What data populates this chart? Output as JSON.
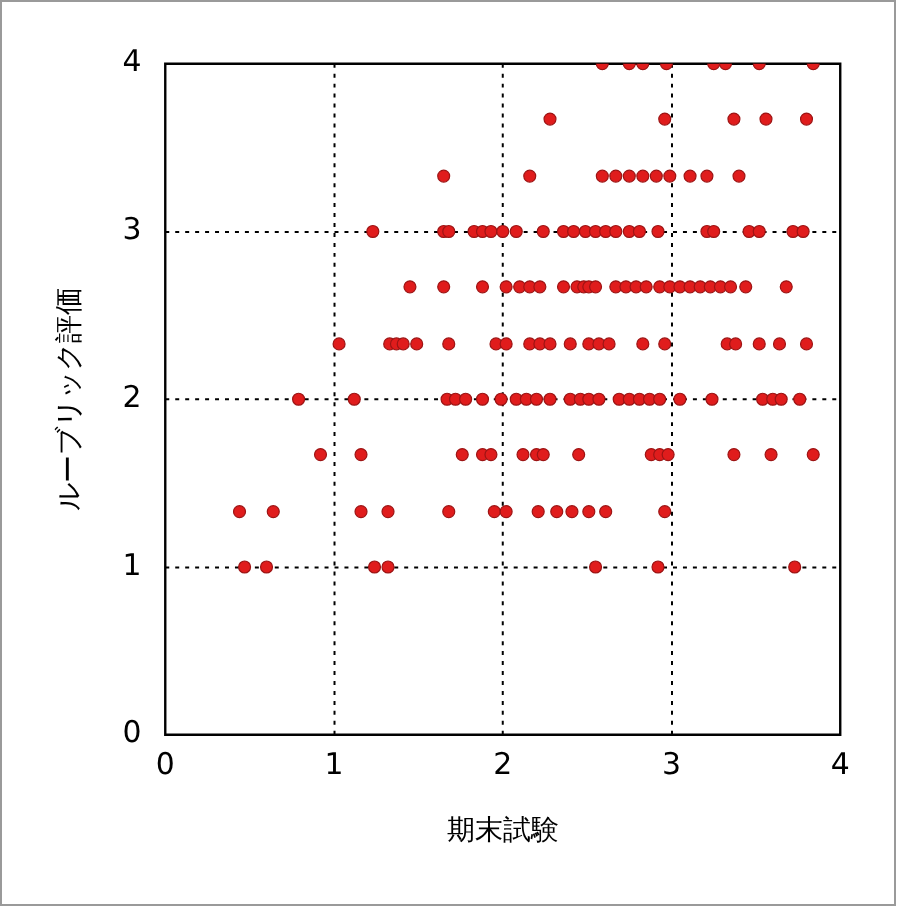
{
  "chart_data": {
    "type": "scatter",
    "xlabel": "期末試験",
    "ylabel": "ルーブリック評価",
    "x": [
      2.59,
      2.75,
      2.83,
      2.97,
      3.25,
      3.32,
      3.52,
      3.84,
      2.28,
      2.96,
      3.37,
      3.56,
      3.8,
      1.65,
      2.16,
      2.59,
      2.67,
      2.75,
      2.83,
      2.91,
      2.99,
      3.11,
      3.21,
      3.4,
      1.23,
      1.65,
      1.68,
      1.83,
      1.88,
      1.93,
      2.0,
      2.08,
      2.24,
      2.36,
      2.42,
      2.49,
      2.55,
      2.61,
      2.67,
      2.75,
      2.81,
      2.92,
      3.21,
      3.25,
      3.46,
      3.52,
      3.72,
      3.78,
      1.45,
      1.65,
      1.88,
      2.02,
      2.1,
      2.16,
      2.22,
      2.36,
      2.44,
      2.48,
      2.51,
      2.55,
      2.67,
      2.73,
      2.79,
      2.85,
      2.93,
      2.99,
      3.05,
      3.11,
      3.17,
      3.23,
      3.29,
      3.35,
      3.44,
      3.68,
      1.03,
      1.33,
      1.37,
      1.41,
      1.49,
      1.68,
      1.96,
      2.02,
      2.16,
      2.22,
      2.28,
      2.4,
      2.51,
      2.57,
      2.63,
      2.83,
      2.96,
      3.33,
      3.38,
      3.52,
      3.64,
      3.8,
      0.79,
      1.12,
      1.67,
      1.72,
      1.78,
      1.88,
      1.99,
      2.08,
      2.14,
      2.2,
      2.28,
      2.4,
      2.46,
      2.51,
      2.57,
      2.69,
      2.75,
      2.81,
      2.87,
      2.93,
      3.05,
      3.24,
      3.54,
      3.6,
      3.65,
      3.76,
      0.92,
      1.16,
      1.76,
      1.88,
      1.93,
      2.12,
      2.2,
      2.24,
      2.45,
      2.88,
      2.93,
      2.98,
      3.37,
      3.59,
      3.84,
      0.44,
      0.64,
      1.16,
      1.32,
      1.68,
      1.95,
      2.02,
      2.21,
      2.32,
      2.41,
      2.51,
      2.61,
      2.96,
      0.47,
      0.6,
      1.24,
      1.32,
      2.55,
      2.92,
      3.73
    ],
    "values": [
      4,
      4,
      4,
      4,
      4,
      4,
      4,
      4,
      3.67,
      3.67,
      3.67,
      3.67,
      3.67,
      3.33,
      3.33,
      3.33,
      3.33,
      3.33,
      3.33,
      3.33,
      3.33,
      3.33,
      3.33,
      3.33,
      3,
      3,
      3,
      3,
      3,
      3,
      3,
      3,
      3,
      3,
      3,
      3,
      3,
      3,
      3,
      3,
      3,
      3,
      3,
      3,
      3,
      3,
      3,
      3,
      2.67,
      2.67,
      2.67,
      2.67,
      2.67,
      2.67,
      2.67,
      2.67,
      2.67,
      2.67,
      2.67,
      2.67,
      2.67,
      2.67,
      2.67,
      2.67,
      2.67,
      2.67,
      2.67,
      2.67,
      2.67,
      2.67,
      2.67,
      2.67,
      2.67,
      2.67,
      2.33,
      2.33,
      2.33,
      2.33,
      2.33,
      2.33,
      2.33,
      2.33,
      2.33,
      2.33,
      2.33,
      2.33,
      2.33,
      2.33,
      2.33,
      2.33,
      2.33,
      2.33,
      2.33,
      2.33,
      2.33,
      2.33,
      2,
      2,
      2,
      2,
      2,
      2,
      2,
      2,
      2,
      2,
      2,
      2,
      2,
      2,
      2,
      2,
      2,
      2,
      2,
      2,
      2,
      2,
      2,
      2,
      2,
      2,
      1.67,
      1.67,
      1.67,
      1.67,
      1.67,
      1.67,
      1.67,
      1.67,
      1.67,
      1.67,
      1.67,
      1.67,
      1.67,
      1.67,
      1.67,
      1.33,
      1.33,
      1.33,
      1.33,
      1.33,
      1.33,
      1.33,
      1.33,
      1.33,
      1.33,
      1.33,
      1.33,
      1.33,
      1,
      1,
      1,
      1,
      1,
      1,
      1
    ],
    "color": "#e01c1c",
    "marker": "circle",
    "xlim": [
      0,
      4
    ],
    "ylim": [
      0,
      4
    ],
    "xticks": [
      0,
      1,
      2,
      3,
      4
    ],
    "yticks": [
      0,
      1,
      2,
      3,
      4
    ],
    "grid": true
  }
}
